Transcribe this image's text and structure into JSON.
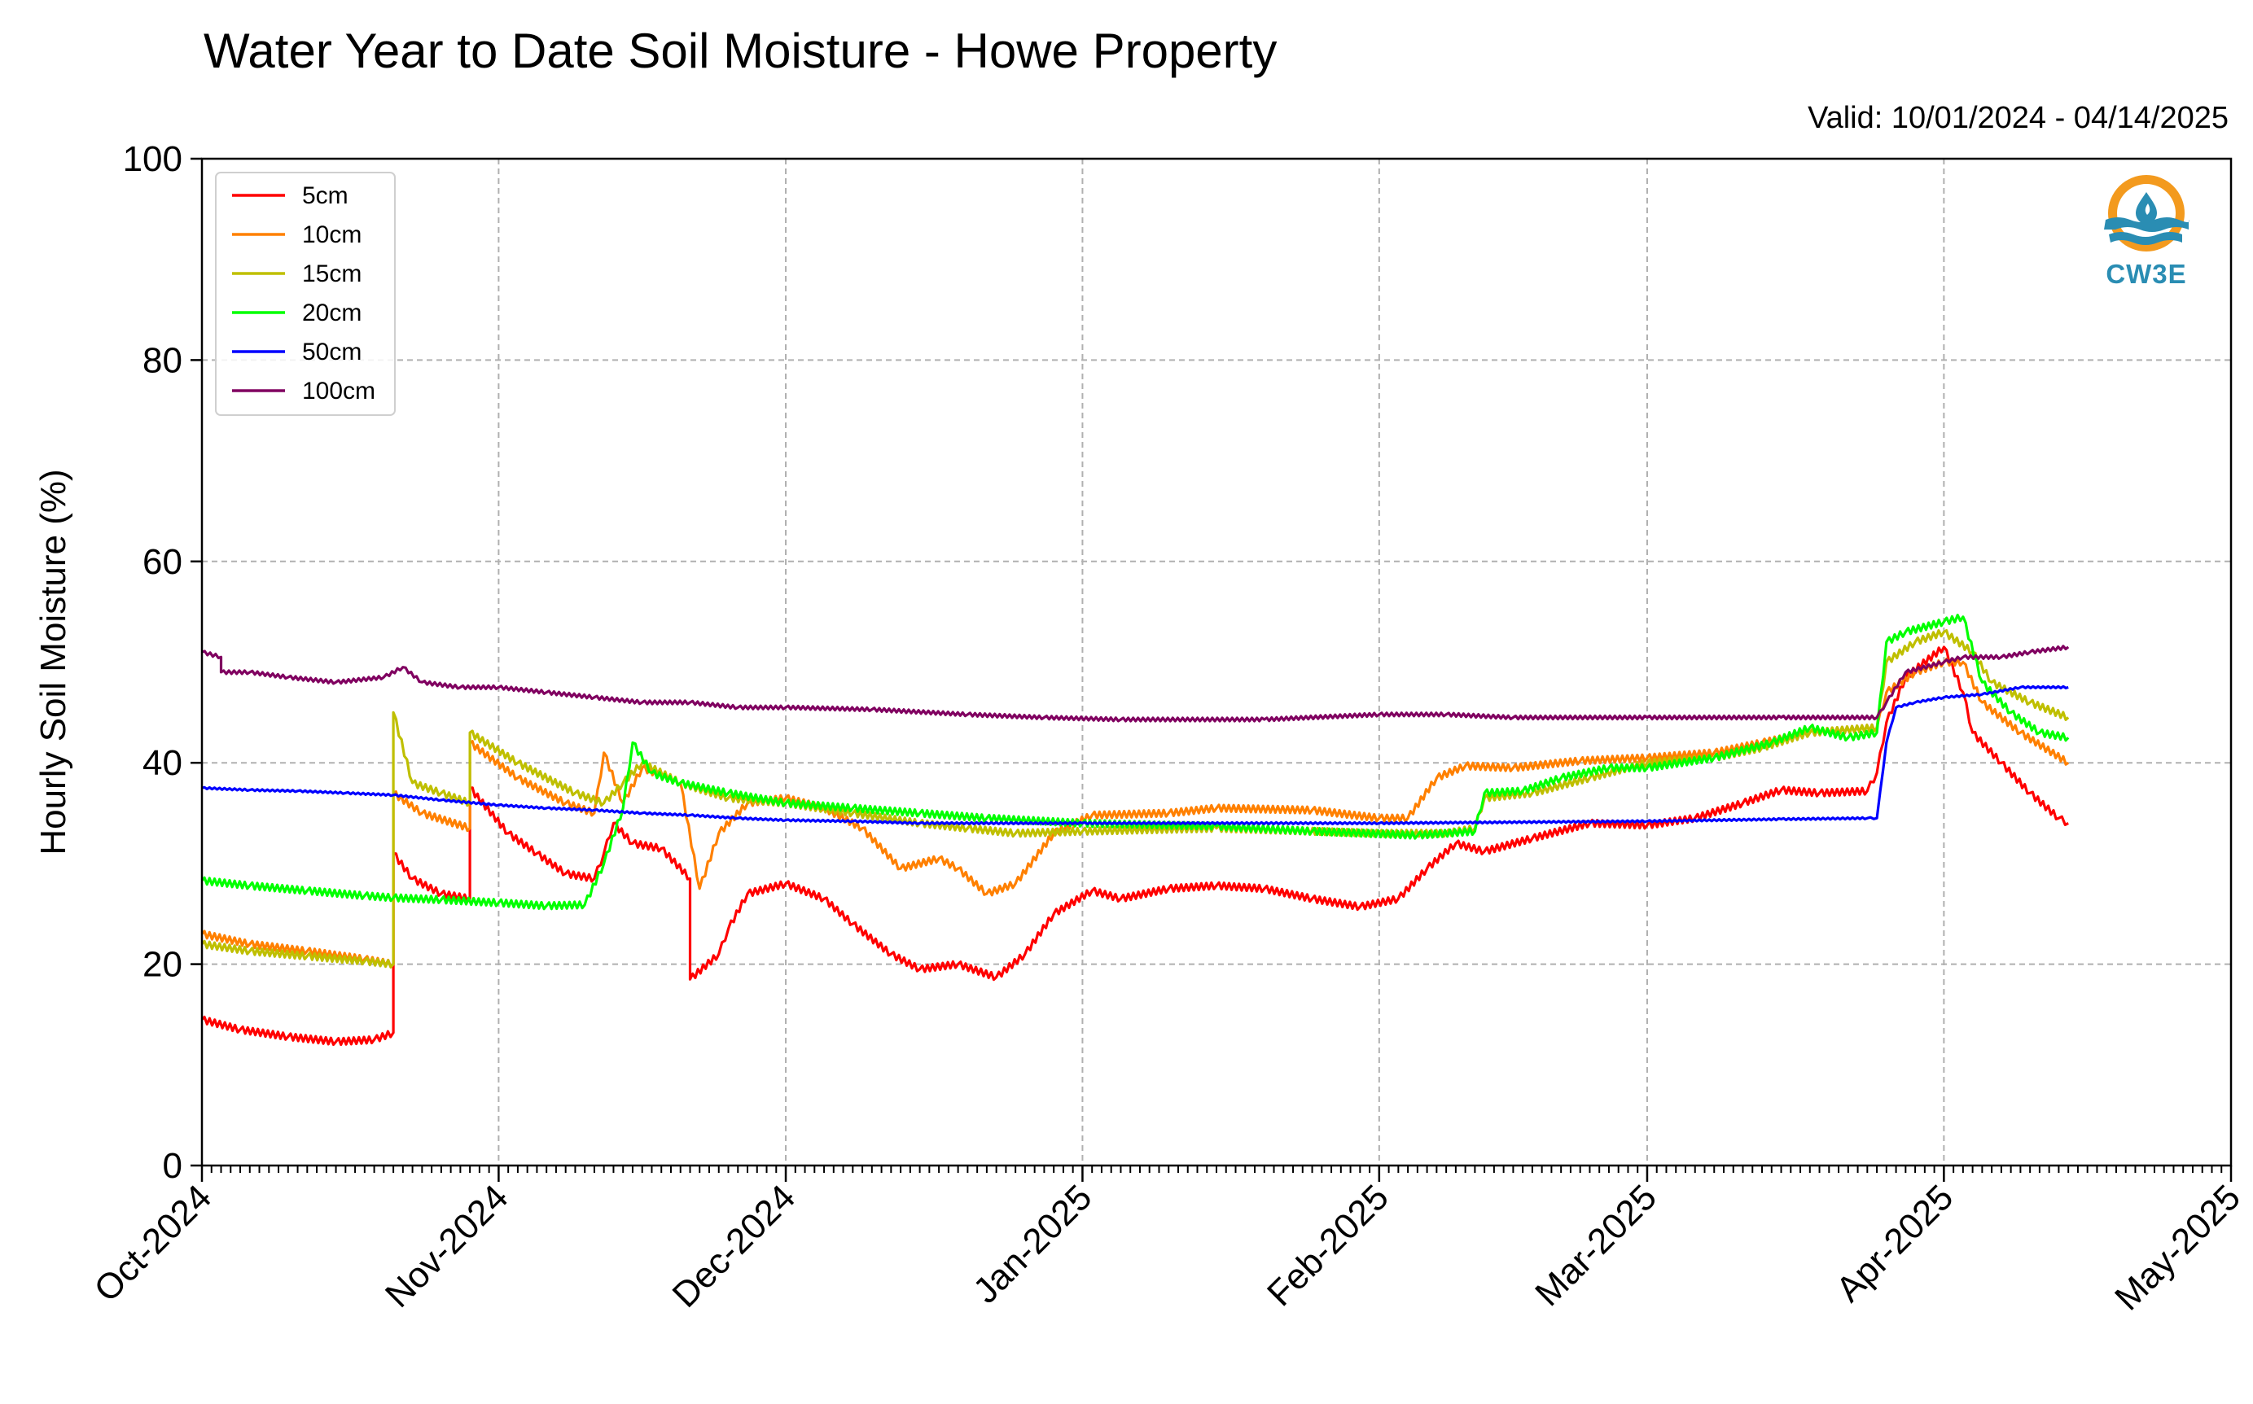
{
  "chart_data": {
    "type": "line",
    "title": "Water Year to Date Soil Moisture - Howe Property",
    "subtitle": "Valid: 10/01/2024 - 04/14/2025",
    "xlabel": "",
    "ylabel": "Hourly Soil Moisture (%)",
    "ylim": [
      0,
      100
    ],
    "xlim": [
      "2024-10-01",
      "2025-05-01"
    ],
    "yticks": [
      0,
      20,
      40,
      60,
      80,
      100
    ],
    "xticks": [
      {
        "date": "2024-10-01",
        "label": "Oct-2024"
      },
      {
        "date": "2024-11-01",
        "label": "Nov-2024"
      },
      {
        "date": "2024-12-01",
        "label": "Dec-2024"
      },
      {
        "date": "2025-01-01",
        "label": "Jan-2025"
      },
      {
        "date": "2025-02-01",
        "label": "Feb-2025"
      },
      {
        "date": "2025-03-01",
        "label": "Mar-2025"
      },
      {
        "date": "2025-04-01",
        "label": "Apr-2025"
      },
      {
        "date": "2025-05-01",
        "label": "May-2025"
      }
    ],
    "grid": true,
    "legend_position": "top-left",
    "series": [
      {
        "name": "5cm",
        "color": "#ff0000",
        "points": [
          [
            "2024-10-01",
            14.5
          ],
          [
            "2024-10-05",
            13.5
          ],
          [
            "2024-10-10",
            12.8
          ],
          [
            "2024-10-15",
            12.3
          ],
          [
            "2024-10-19",
            12.5
          ],
          [
            "2024-10-21",
            13.2
          ],
          [
            "2024-10-21",
            31
          ],
          [
            "2024-10-23",
            28.5
          ],
          [
            "2024-10-26",
            27
          ],
          [
            "2024-10-29",
            26.5
          ],
          [
            "2024-10-29",
            37.5
          ],
          [
            "2024-11-02",
            33
          ],
          [
            "2024-11-05",
            31
          ],
          [
            "2024-11-08",
            29
          ],
          [
            "2024-11-11",
            28.5
          ],
          [
            "2024-11-12",
            31
          ],
          [
            "2024-11-13",
            34
          ],
          [
            "2024-11-15",
            32
          ],
          [
            "2024-11-18",
            31.5
          ],
          [
            "2024-11-21",
            28.5
          ],
          [
            "2024-11-21",
            18.5
          ],
          [
            "2024-11-24",
            21
          ],
          [
            "2024-11-25",
            23.5
          ],
          [
            "2024-11-27",
            27
          ],
          [
            "2024-12-01",
            28
          ],
          [
            "2024-12-05",
            26.5
          ],
          [
            "2024-12-08",
            24
          ],
          [
            "2024-12-12",
            21
          ],
          [
            "2024-12-15",
            19.5
          ],
          [
            "2024-12-19",
            20
          ],
          [
            "2024-12-23",
            18.7
          ],
          [
            "2024-12-26",
            21
          ],
          [
            "2024-12-29",
            25
          ],
          [
            "2025-01-02",
            27.3
          ],
          [
            "2025-01-05",
            26.5
          ],
          [
            "2025-01-10",
            27.5
          ],
          [
            "2025-01-15",
            27.8
          ],
          [
            "2025-01-20",
            27.5
          ],
          [
            "2025-01-25",
            26.5
          ],
          [
            "2025-01-30",
            25.7
          ],
          [
            "2025-02-03",
            26.5
          ],
          [
            "2025-02-06",
            29.5
          ],
          [
            "2025-02-09",
            32
          ],
          [
            "2025-02-12",
            31.2
          ],
          [
            "2025-02-17",
            32.5
          ],
          [
            "2025-02-23",
            34
          ],
          [
            "2025-03-01",
            33.8
          ],
          [
            "2025-03-06",
            34.5
          ],
          [
            "2025-03-11",
            36
          ],
          [
            "2025-03-15",
            37.3
          ],
          [
            "2025-03-19",
            37
          ],
          [
            "2025-03-24",
            37.2
          ],
          [
            "2025-03-25",
            39
          ],
          [
            "2025-03-26",
            44
          ],
          [
            "2025-03-28",
            48.5
          ],
          [
            "2025-04-01",
            51.5
          ],
          [
            "2025-04-03",
            47
          ],
          [
            "2025-04-04",
            43
          ],
          [
            "2025-04-07",
            40
          ],
          [
            "2025-04-10",
            37
          ],
          [
            "2025-04-13",
            34.5
          ],
          [
            "2025-04-14",
            34
          ]
        ]
      },
      {
        "name": "10cm",
        "color": "#ff8000",
        "points": [
          [
            "2024-10-01",
            23
          ],
          [
            "2024-10-06",
            22
          ],
          [
            "2024-10-12",
            21.3
          ],
          [
            "2024-10-18",
            20.5
          ],
          [
            "2024-10-21",
            20
          ],
          [
            "2024-10-21",
            37
          ],
          [
            "2024-10-24",
            35
          ],
          [
            "2024-10-29",
            33.5
          ],
          [
            "2024-10-29",
            42
          ],
          [
            "2024-11-03",
            38.5
          ],
          [
            "2024-11-08",
            36
          ],
          [
            "2024-11-11",
            35
          ],
          [
            "2024-11-12",
            41
          ],
          [
            "2024-11-14",
            36
          ],
          [
            "2024-11-16",
            39.5
          ],
          [
            "2024-11-20",
            38
          ],
          [
            "2024-11-22",
            27.5
          ],
          [
            "2024-11-24",
            33
          ],
          [
            "2024-11-27",
            36
          ],
          [
            "2024-12-01",
            36.5
          ],
          [
            "2024-12-05",
            35.5
          ],
          [
            "2024-12-09",
            33.5
          ],
          [
            "2024-12-13",
            29.5
          ],
          [
            "2024-12-17",
            30.5
          ],
          [
            "2024-12-19",
            29.5
          ],
          [
            "2024-12-22",
            27
          ],
          [
            "2024-12-25",
            28
          ],
          [
            "2024-12-29",
            33
          ],
          [
            "2025-01-02",
            34.8
          ],
          [
            "2025-01-10",
            35
          ],
          [
            "2025-01-15",
            35.5
          ],
          [
            "2025-01-25",
            35.3
          ],
          [
            "2025-02-01",
            34.5
          ],
          [
            "2025-02-04",
            34.5
          ],
          [
            "2025-02-07",
            38.5
          ],
          [
            "2025-02-10",
            39.7
          ],
          [
            "2025-02-15",
            39.5
          ],
          [
            "2025-02-22",
            40.2
          ],
          [
            "2025-03-01",
            40.5
          ],
          [
            "2025-03-08",
            41
          ],
          [
            "2025-03-13",
            42
          ],
          [
            "2025-03-18",
            43
          ],
          [
            "2025-03-25",
            43.5
          ],
          [
            "2025-03-26",
            47
          ],
          [
            "2025-03-29",
            49
          ],
          [
            "2025-04-01",
            50
          ],
          [
            "2025-04-03",
            50
          ],
          [
            "2025-04-05",
            46
          ],
          [
            "2025-04-09",
            43
          ],
          [
            "2025-04-14",
            40
          ]
        ]
      },
      {
        "name": "15cm",
        "color": "#bfbf00",
        "points": [
          [
            "2024-10-01",
            22
          ],
          [
            "2024-10-06",
            21.3
          ],
          [
            "2024-10-12",
            20.8
          ],
          [
            "2024-10-18",
            20.3
          ],
          [
            "2024-10-21",
            20
          ],
          [
            "2024-10-21",
            45
          ],
          [
            "2024-10-23",
            38
          ],
          [
            "2024-10-26",
            37
          ],
          [
            "2024-10-29",
            36
          ],
          [
            "2024-10-29",
            43
          ],
          [
            "2024-11-03",
            40
          ],
          [
            "2024-11-09",
            37
          ],
          [
            "2024-11-12",
            36
          ],
          [
            "2024-11-14",
            38
          ],
          [
            "2024-11-16",
            40
          ],
          [
            "2024-11-20",
            38
          ],
          [
            "2024-11-25",
            36.5
          ],
          [
            "2024-12-01",
            36
          ],
          [
            "2024-12-08",
            35
          ],
          [
            "2024-12-15",
            34
          ],
          [
            "2024-12-20",
            33.5
          ],
          [
            "2024-12-25",
            33
          ],
          [
            "2025-01-01",
            33.2
          ],
          [
            "2025-01-15",
            33.5
          ],
          [
            "2025-02-01",
            33
          ],
          [
            "2025-02-08",
            33
          ],
          [
            "2025-02-11",
            33.5
          ],
          [
            "2025-02-12",
            36.5
          ],
          [
            "2025-02-17",
            37
          ],
          [
            "2025-02-23",
            38.5
          ],
          [
            "2025-03-01",
            40
          ],
          [
            "2025-03-08",
            40.5
          ],
          [
            "2025-03-13",
            41.5
          ],
          [
            "2025-03-18",
            43
          ],
          [
            "2025-03-25",
            43.5
          ],
          [
            "2025-03-26",
            50
          ],
          [
            "2025-03-29",
            52
          ],
          [
            "2025-04-01",
            53
          ],
          [
            "2025-04-04",
            51
          ],
          [
            "2025-04-06",
            48
          ],
          [
            "2025-04-10",
            46
          ],
          [
            "2025-04-14",
            44.5
          ]
        ]
      },
      {
        "name": "20cm",
        "color": "#00ff00",
        "points": [
          [
            "2024-10-01",
            28.3
          ],
          [
            "2024-10-06",
            27.8
          ],
          [
            "2024-10-12",
            27.3
          ],
          [
            "2024-10-18",
            26.8
          ],
          [
            "2024-10-21",
            26.6
          ],
          [
            "2024-10-26",
            26.4
          ],
          [
            "2024-11-01",
            26.1
          ],
          [
            "2024-11-06",
            25.8
          ],
          [
            "2024-11-10",
            25.9
          ],
          [
            "2024-11-12",
            30
          ],
          [
            "2024-11-14",
            35.5
          ],
          [
            "2024-11-15",
            42
          ],
          [
            "2024-11-17",
            39
          ],
          [
            "2024-11-20",
            38
          ],
          [
            "2024-11-25",
            37
          ],
          [
            "2024-12-01",
            36
          ],
          [
            "2024-12-08",
            35.5
          ],
          [
            "2024-12-15",
            35
          ],
          [
            "2024-12-22",
            34.5
          ],
          [
            "2025-01-01",
            34
          ],
          [
            "2025-01-15",
            33.7
          ],
          [
            "2025-01-25",
            33.2
          ],
          [
            "2025-02-05",
            32.8
          ],
          [
            "2025-02-11",
            33.2
          ],
          [
            "2025-02-12",
            37
          ],
          [
            "2025-02-16",
            37.2
          ],
          [
            "2025-02-20",
            38.5
          ],
          [
            "2025-02-25",
            39.5
          ],
          [
            "2025-03-01",
            39.5
          ],
          [
            "2025-03-08",
            40.5
          ],
          [
            "2025-03-14",
            42
          ],
          [
            "2025-03-18",
            43.5
          ],
          [
            "2025-03-22",
            42.5
          ],
          [
            "2025-03-25",
            43
          ],
          [
            "2025-03-26",
            52
          ],
          [
            "2025-03-28",
            53
          ],
          [
            "2025-04-01",
            54
          ],
          [
            "2025-04-03",
            54.5
          ],
          [
            "2025-04-05",
            48
          ],
          [
            "2025-04-08",
            45
          ],
          [
            "2025-04-11",
            43
          ],
          [
            "2025-04-14",
            42.5
          ]
        ]
      },
      {
        "name": "50cm",
        "color": "#0000ff",
        "points": [
          [
            "2024-10-01",
            37.5
          ],
          [
            "2024-10-06",
            37.3
          ],
          [
            "2024-10-11",
            37.2
          ],
          [
            "2024-10-16",
            37
          ],
          [
            "2024-10-21",
            36.8
          ],
          [
            "2024-10-26",
            36.3
          ],
          [
            "2024-11-01",
            35.8
          ],
          [
            "2024-11-06",
            35.5
          ],
          [
            "2024-11-11",
            35.3
          ],
          [
            "2024-11-16",
            35
          ],
          [
            "2024-11-21",
            34.8
          ],
          [
            "2024-11-26",
            34.5
          ],
          [
            "2024-12-01",
            34.3
          ],
          [
            "2024-12-08",
            34.2
          ],
          [
            "2024-12-15",
            34
          ],
          [
            "2025-01-01",
            34
          ],
          [
            "2025-02-01",
            34
          ],
          [
            "2025-03-01",
            34.2
          ],
          [
            "2025-03-15",
            34.4
          ],
          [
            "2025-03-24",
            34.5
          ],
          [
            "2025-03-25",
            34.5
          ],
          [
            "2025-03-26",
            42
          ],
          [
            "2025-03-27",
            45.5
          ],
          [
            "2025-03-29",
            46
          ],
          [
            "2025-04-01",
            46.5
          ],
          [
            "2025-04-05",
            46.8
          ],
          [
            "2025-04-09",
            47.5
          ],
          [
            "2025-04-14",
            47.5
          ]
        ]
      },
      {
        "name": "100cm",
        "color": "#800060",
        "points": [
          [
            "2024-10-01",
            51
          ],
          [
            "2024-10-03",
            50.5
          ],
          [
            "2024-10-03",
            49
          ],
          [
            "2024-10-06",
            49
          ],
          [
            "2024-10-10",
            48.5
          ],
          [
            "2024-10-15",
            48
          ],
          [
            "2024-10-20",
            48.5
          ],
          [
            "2024-10-22",
            49.5
          ],
          [
            "2024-10-24",
            48
          ],
          [
            "2024-10-28",
            47.5
          ],
          [
            "2024-11-01",
            47.5
          ],
          [
            "2024-11-06",
            47
          ],
          [
            "2024-11-11",
            46.5
          ],
          [
            "2024-11-16",
            46
          ],
          [
            "2024-11-21",
            46
          ],
          [
            "2024-11-26",
            45.5
          ],
          [
            "2024-12-01",
            45.5
          ],
          [
            "2024-12-10",
            45.3
          ],
          [
            "2024-12-20",
            44.8
          ],
          [
            "2024-12-28",
            44.5
          ],
          [
            "2025-01-05",
            44.3
          ],
          [
            "2025-01-20",
            44.3
          ],
          [
            "2025-02-01",
            44.8
          ],
          [
            "2025-02-08",
            44.8
          ],
          [
            "2025-02-15",
            44.5
          ],
          [
            "2025-03-01",
            44.5
          ],
          [
            "2025-03-15",
            44.5
          ],
          [
            "2025-03-25",
            44.5
          ],
          [
            "2025-03-26",
            46
          ],
          [
            "2025-03-28",
            49
          ],
          [
            "2025-04-01",
            50
          ],
          [
            "2025-04-03",
            50.5
          ],
          [
            "2025-04-07",
            50.5
          ],
          [
            "2025-04-10",
            51
          ],
          [
            "2025-04-14",
            51.5
          ]
        ]
      }
    ]
  },
  "logo": {
    "text": "CW3E",
    "icon": "water-drop-logo-icon",
    "ring_color": "#f39a1e",
    "wave_color": "#2a8db3"
  }
}
